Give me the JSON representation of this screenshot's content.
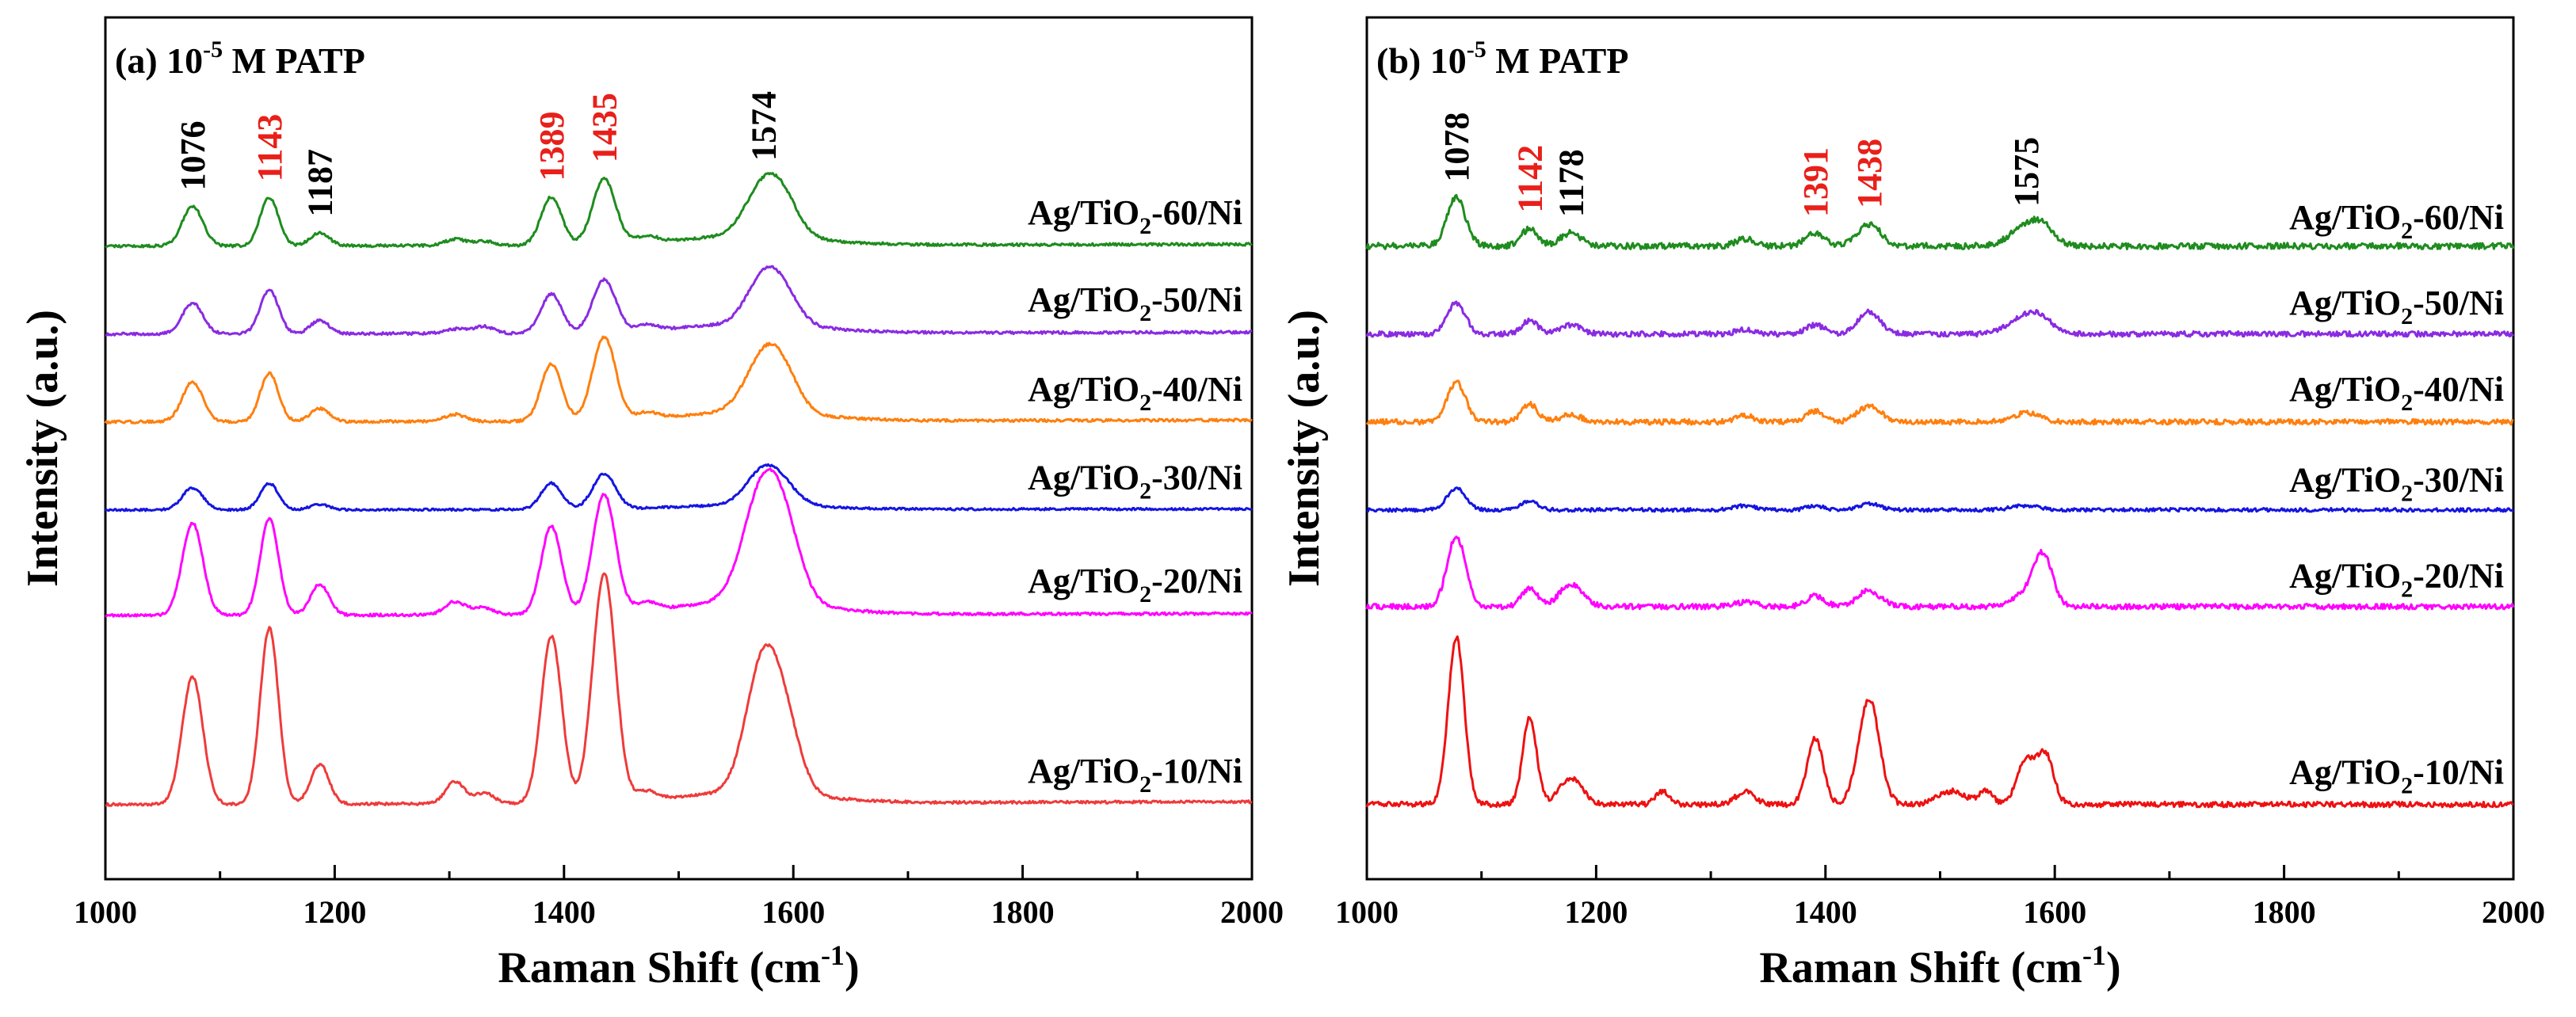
{
  "figure": {
    "ylabel": "Intensity (a.u.)",
    "xlabel": "Raman Shift (cm-1)"
  },
  "chart_data": [
    {
      "type": "line",
      "panel": "(a)",
      "title": "(a) 10-5 M PATP",
      "title_parts": {
        "prefix": "(a) 10",
        "sup": "-5",
        "suffix": " M PATP"
      },
      "xlabel": "Raman Shift (cm-1)",
      "ylabel": "Intensity (a.u.)",
      "xlim": [
        1000,
        2000
      ],
      "xticks": [
        1000,
        1200,
        1400,
        1600,
        1800,
        2000
      ],
      "y_ticks_shown": false,
      "peak_labels": [
        {
          "text": "1076",
          "x": 1076,
          "color": "#000000"
        },
        {
          "text": "1143",
          "x": 1143,
          "color": "#e8201a"
        },
        {
          "text": "1187",
          "x": 1187,
          "color": "#000000"
        },
        {
          "text": "1389",
          "x": 1389,
          "color": "#e8201a"
        },
        {
          "text": "1435",
          "x": 1435,
          "color": "#e8201a"
        },
        {
          "text": "1574",
          "x": 1574,
          "color": "#000000"
        }
      ],
      "series": [
        {
          "name": "Ag/TiO2-60/Ni",
          "label": {
            "pre": "Ag/TiO",
            "sub": "2",
            "post": "-60/Ni"
          },
          "color": "#1e8c1e",
          "offset": 5.0,
          "baseline": 0.0,
          "slope": 0.02,
          "broad": 0.1,
          "noise": 0.015,
          "peaks": [
            [
              1076,
              0.45,
              9
            ],
            [
              1143,
              0.55,
              8
            ],
            [
              1187,
              0.15,
              8
            ],
            [
              1305,
              0.07,
              9
            ],
            [
              1330,
              0.05,
              9
            ],
            [
              1389,
              0.55,
              9
            ],
            [
              1435,
              0.75,
              10
            ],
            [
              1472,
              0.08,
              9
            ],
            [
              1574,
              0.55,
              16
            ],
            [
              1592,
              0.3,
              14
            ]
          ]
        },
        {
          "name": "Ag/TiO2-50/Ni",
          "label": {
            "pre": "Ag/TiO",
            "sub": "2",
            "post": "-50/Ni"
          },
          "color": "#8a2be2",
          "offset": 4.0,
          "baseline": 0.0,
          "slope": 0.02,
          "broad": 0.1,
          "noise": 0.015,
          "peaks": [
            [
              1076,
              0.35,
              9
            ],
            [
              1143,
              0.5,
              8
            ],
            [
              1187,
              0.15,
              8
            ],
            [
              1305,
              0.05,
              9
            ],
            [
              1330,
              0.08,
              9
            ],
            [
              1389,
              0.45,
              9
            ],
            [
              1435,
              0.6,
              10
            ],
            [
              1472,
              0.07,
              9
            ],
            [
              1574,
              0.5,
              15
            ],
            [
              1592,
              0.28,
              14
            ]
          ]
        },
        {
          "name": "Ag/TiO2-40/Ni",
          "label": {
            "pre": "Ag/TiO",
            "sub": "2",
            "post": "-40/Ni"
          },
          "color": "#ff7f0e",
          "offset": 3.0,
          "baseline": 0.0,
          "slope": 0.02,
          "broad": 0.1,
          "noise": 0.015,
          "peaks": [
            [
              1076,
              0.45,
              9
            ],
            [
              1143,
              0.55,
              8
            ],
            [
              1187,
              0.15,
              8
            ],
            [
              1305,
              0.08,
              9
            ],
            [
              1389,
              0.65,
              9
            ],
            [
              1435,
              0.95,
              10
            ],
            [
              1472,
              0.07,
              9
            ],
            [
              1574,
              0.6,
              16
            ],
            [
              1592,
              0.32,
              14
            ]
          ]
        },
        {
          "name": "Ag/TiO2-30/Ni",
          "label": {
            "pre": "Ag/TiO",
            "sub": "2",
            "post": "-30/Ni"
          },
          "color": "#1515e0",
          "offset": 2.0,
          "baseline": 0.0,
          "slope": 0.01,
          "broad": 0.05,
          "noise": 0.012,
          "peaks": [
            [
              1076,
              0.25,
              9
            ],
            [
              1143,
              0.3,
              8
            ],
            [
              1187,
              0.06,
              8
            ],
            [
              1389,
              0.3,
              9
            ],
            [
              1435,
              0.4,
              10
            ],
            [
              1574,
              0.38,
              15
            ],
            [
              1592,
              0.15,
              14
            ]
          ]
        },
        {
          "name": "Ag/TiO2-20/Ni",
          "label": {
            "pre": "Ag/TiO",
            "sub": "2",
            "post": "-20/Ni"
          },
          "color": "#ff00ff",
          "offset": 0.8,
          "baseline": 0.0,
          "slope": 0.02,
          "broad": 0.15,
          "noise": 0.015,
          "peaks": [
            [
              1076,
              1.05,
              9
            ],
            [
              1143,
              1.1,
              8
            ],
            [
              1187,
              0.35,
              8
            ],
            [
              1305,
              0.15,
              9
            ],
            [
              1330,
              0.08,
              9
            ],
            [
              1389,
              1.0,
              9
            ],
            [
              1435,
              1.35,
              10
            ],
            [
              1472,
              0.1,
              9
            ],
            [
              1574,
              1.3,
              17
            ],
            [
              1595,
              0.5,
              14
            ]
          ]
        },
        {
          "name": "Ag/TiO2-10/Ni",
          "label": {
            "pre": "Ag/TiO",
            "sub": "2",
            "post": "-10/Ni"
          },
          "color": "#ef3b3b",
          "offset": -1.35,
          "baseline": 0.0,
          "slope": 0.03,
          "broad": 0.12,
          "noise": 0.015,
          "peaks": [
            [
              1076,
              1.45,
              9
            ],
            [
              1143,
              2.0,
              8
            ],
            [
              1187,
              0.45,
              8
            ],
            [
              1305,
              0.25,
              8
            ],
            [
              1330,
              0.12,
              9
            ],
            [
              1389,
              1.9,
              9
            ],
            [
              1435,
              2.6,
              10
            ],
            [
              1472,
              0.1,
              9
            ],
            [
              1574,
              1.5,
              15
            ],
            [
              1595,
              0.55,
              13
            ]
          ]
        }
      ]
    },
    {
      "type": "line",
      "panel": "(b)",
      "title": "(b) 10-5 M PATP",
      "title_parts": {
        "prefix": "(b) 10",
        "sup": "-5",
        "suffix": " M PATP"
      },
      "xlabel": "Raman Shift (cm-1)",
      "ylabel": "Intensity (a.u.)",
      "xlim": [
        1000,
        2000
      ],
      "xticks": [
        1000,
        1200,
        1400,
        1600,
        1800,
        2000
      ],
      "y_ticks_shown": false,
      "peak_labels": [
        {
          "text": "1078",
          "x": 1078,
          "color": "#000000"
        },
        {
          "text": "1142",
          "x": 1142,
          "color": "#e8201a"
        },
        {
          "text": "1178",
          "x": 1178,
          "color": "#000000"
        },
        {
          "text": "1391",
          "x": 1391,
          "color": "#e8201a"
        },
        {
          "text": "1438",
          "x": 1438,
          "color": "#e8201a"
        },
        {
          "text": "1575",
          "x": 1575,
          "color": "#000000"
        }
      ],
      "series": [
        {
          "name": "Ag/TiO2-60/Ni",
          "label": {
            "pre": "Ag/TiO",
            "sub": "2",
            "post": "-60/Ni"
          },
          "color": "#1e8c1e",
          "offset": 5.0,
          "baseline": 0.0,
          "slope": 0.0,
          "broad": 0.0,
          "noise": 0.035,
          "peaks": [
            [
              1078,
              0.55,
              8
            ],
            [
              1142,
              0.2,
              7
            ],
            [
              1178,
              0.15,
              9
            ],
            [
              1330,
              0.08,
              8
            ],
            [
              1391,
              0.15,
              8
            ],
            [
              1438,
              0.25,
              10
            ],
            [
              1575,
              0.22,
              14
            ],
            [
              1590,
              0.15,
              10
            ]
          ]
        },
        {
          "name": "Ag/TiO2-50/Ni",
          "label": {
            "pre": "Ag/TiO",
            "sub": "2",
            "post": "-50/Ni"
          },
          "color": "#8a2be2",
          "offset": 4.0,
          "baseline": 0.0,
          "slope": 0.0,
          "broad": 0.0,
          "noise": 0.03,
          "peaks": [
            [
              1078,
              0.35,
              8
            ],
            [
              1142,
              0.15,
              7
            ],
            [
              1178,
              0.1,
              9
            ],
            [
              1330,
              0.05,
              8
            ],
            [
              1391,
              0.1,
              8
            ],
            [
              1438,
              0.25,
              10
            ],
            [
              1575,
              0.2,
              14
            ],
            [
              1590,
              0.1,
              10
            ]
          ]
        },
        {
          "name": "Ag/TiO2-40/Ni",
          "label": {
            "pre": "Ag/TiO",
            "sub": "2",
            "post": "-40/Ni"
          },
          "color": "#ff7f0e",
          "offset": 3.0,
          "baseline": 0.0,
          "slope": 0.0,
          "broad": 0.0,
          "noise": 0.03,
          "peaks": [
            [
              1078,
              0.45,
              8
            ],
            [
              1142,
              0.2,
              7
            ],
            [
              1178,
              0.08,
              9
            ],
            [
              1330,
              0.07,
              8
            ],
            [
              1391,
              0.12,
              8
            ],
            [
              1438,
              0.18,
              10
            ],
            [
              1575,
              0.1,
              12
            ]
          ]
        },
        {
          "name": "Ag/TiO2-30/Ni",
          "label": {
            "pre": "Ag/TiO",
            "sub": "2",
            "post": "-30/Ni"
          },
          "color": "#1515e0",
          "offset": 2.0,
          "baseline": 0.0,
          "slope": 0.0,
          "broad": 0.0,
          "noise": 0.02,
          "peaks": [
            [
              1078,
              0.25,
              8
            ],
            [
              1142,
              0.1,
              7
            ],
            [
              1330,
              0.05,
              9
            ],
            [
              1391,
              0.05,
              7
            ],
            [
              1438,
              0.07,
              9
            ],
            [
              1575,
              0.05,
              12
            ]
          ]
        },
        {
          "name": "Ag/TiO2-20/Ni",
          "label": {
            "pre": "Ag/TiO",
            "sub": "2",
            "post": "-20/Ni"
          },
          "color": "#ff00ff",
          "offset": 0.9,
          "baseline": 0.0,
          "slope": 0.0,
          "broad": 0.0,
          "noise": 0.03,
          "peaks": [
            [
              1078,
              0.8,
              8
            ],
            [
              1142,
              0.2,
              7
            ],
            [
              1178,
              0.25,
              10
            ],
            [
              1330,
              0.05,
              9
            ],
            [
              1391,
              0.12,
              8
            ],
            [
              1438,
              0.18,
              10
            ],
            [
              1575,
              0.15,
              12
            ],
            [
              1590,
              0.55,
              8
            ]
          ]
        },
        {
          "name": "Ag/TiO2-10/Ni",
          "label": {
            "pre": "Ag/TiO",
            "sub": "2",
            "post": "-10/Ni"
          },
          "color": "#ee1111",
          "offset": -1.35,
          "baseline": 0.0,
          "slope": 0.0,
          "broad": 0.0,
          "noise": 0.03,
          "peaks": [
            [
              1078,
              1.9,
              7
            ],
            [
              1142,
              1.0,
              6
            ],
            [
              1178,
              0.3,
              10
            ],
            [
              1258,
              0.15,
              6
            ],
            [
              1330,
              0.15,
              8
            ],
            [
              1391,
              0.75,
              7
            ],
            [
              1438,
              1.2,
              9
            ],
            [
              1510,
              0.15,
              12
            ],
            [
              1540,
              0.15,
              6
            ],
            [
              1575,
              0.5,
              8
            ],
            [
              1592,
              0.55,
              7
            ]
          ]
        }
      ]
    }
  ]
}
